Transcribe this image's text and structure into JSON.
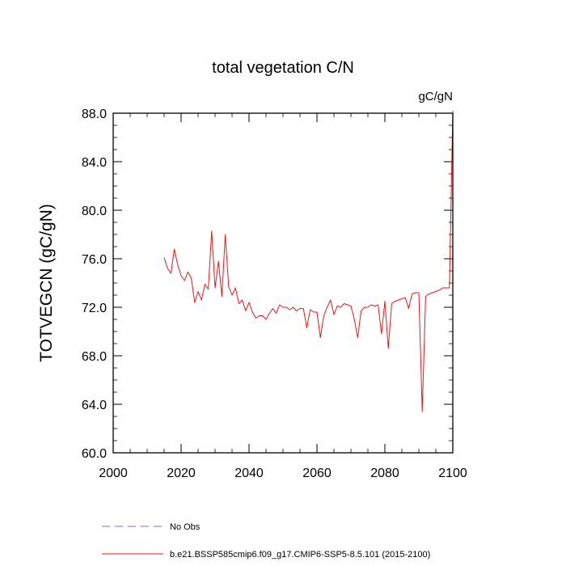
{
  "chart_data": {
    "type": "line",
    "title": "total vegetation C/N",
    "units_label": "gC/gN",
    "ylabel": "TOTVEGCN  (gC/gN)",
    "xlabel": "",
    "xlim": [
      2000,
      2100
    ],
    "ylim": [
      60,
      88
    ],
    "x_ticks": [
      2000,
      2020,
      2040,
      2060,
      2080,
      2100
    ],
    "x_tick_labels": [
      "2000",
      "2020",
      "2040",
      "2060",
      "2080",
      "2100"
    ],
    "y_ticks": [
      60,
      64,
      68,
      72,
      76,
      80,
      84,
      88
    ],
    "y_tick_labels": [
      "60.0",
      "64.0",
      "68.0",
      "72.0",
      "76.0",
      "80.0",
      "84.0",
      "88.0"
    ],
    "grid": false,
    "legend_position": "bottom",
    "series": [
      {
        "name": "No Obs",
        "color": "#6f6fdf",
        "dashed": true,
        "x": [],
        "y": []
      },
      {
        "name": "b.e21.BSSP585cmip6.f09_g17.CMIP6-SSP5-8.5.101 (2015-2100)",
        "color": "#e41a1c",
        "dashed": false,
        "x": [
          2015,
          2016,
          2017,
          2018,
          2019,
          2020,
          2021,
          2022,
          2023,
          2024,
          2025,
          2026,
          2027,
          2028,
          2029,
          2030,
          2031,
          2032,
          2033,
          2034,
          2035,
          2036,
          2037,
          2038,
          2039,
          2040,
          2041,
          2042,
          2043,
          2044,
          2045,
          2046,
          2047,
          2048,
          2049,
          2050,
          2051,
          2052,
          2053,
          2054,
          2055,
          2056,
          2057,
          2058,
          2059,
          2060,
          2061,
          2062,
          2063,
          2064,
          2065,
          2066,
          2067,
          2068,
          2069,
          2070,
          2071,
          2072,
          2073,
          2074,
          2075,
          2076,
          2077,
          2078,
          2079,
          2080,
          2081,
          2082,
          2083,
          2084,
          2085,
          2086,
          2087,
          2088,
          2089,
          2090,
          2091,
          2092,
          2093,
          2094,
          2095,
          2096,
          2097,
          2098,
          2099,
          2100
        ],
        "y": [
          76.1,
          75.2,
          74.8,
          76.8,
          75.5,
          74.6,
          74.2,
          74.9,
          74.4,
          72.4,
          73.3,
          72.6,
          73.9,
          73.5,
          78.3,
          73.6,
          75.8,
          72.9,
          78.0,
          73.7,
          73.0,
          73.6,
          72.3,
          72.6,
          71.7,
          72.4,
          71.6,
          71.1,
          71.3,
          71.3,
          71.0,
          71.5,
          71.9,
          71.5,
          72.2,
          72.0,
          72.0,
          71.8,
          72.0,
          71.7,
          71.9,
          71.9,
          70.3,
          71.8,
          71.6,
          71.6,
          69.5,
          71.3,
          72.0,
          72.6,
          71.4,
          72.1,
          72.0,
          72.3,
          72.2,
          72.1,
          71.0,
          69.5,
          71.7,
          72.0,
          72.0,
          72.2,
          72.1,
          72.2,
          69.8,
          72.5,
          68.6,
          72.3,
          72.5,
          72.6,
          72.7,
          72.8,
          71.9,
          73.1,
          73.2,
          73.2,
          63.4,
          72.9,
          73.1,
          73.2,
          73.3,
          73.4,
          73.6,
          73.6,
          73.6,
          88.2
        ]
      }
    ]
  }
}
